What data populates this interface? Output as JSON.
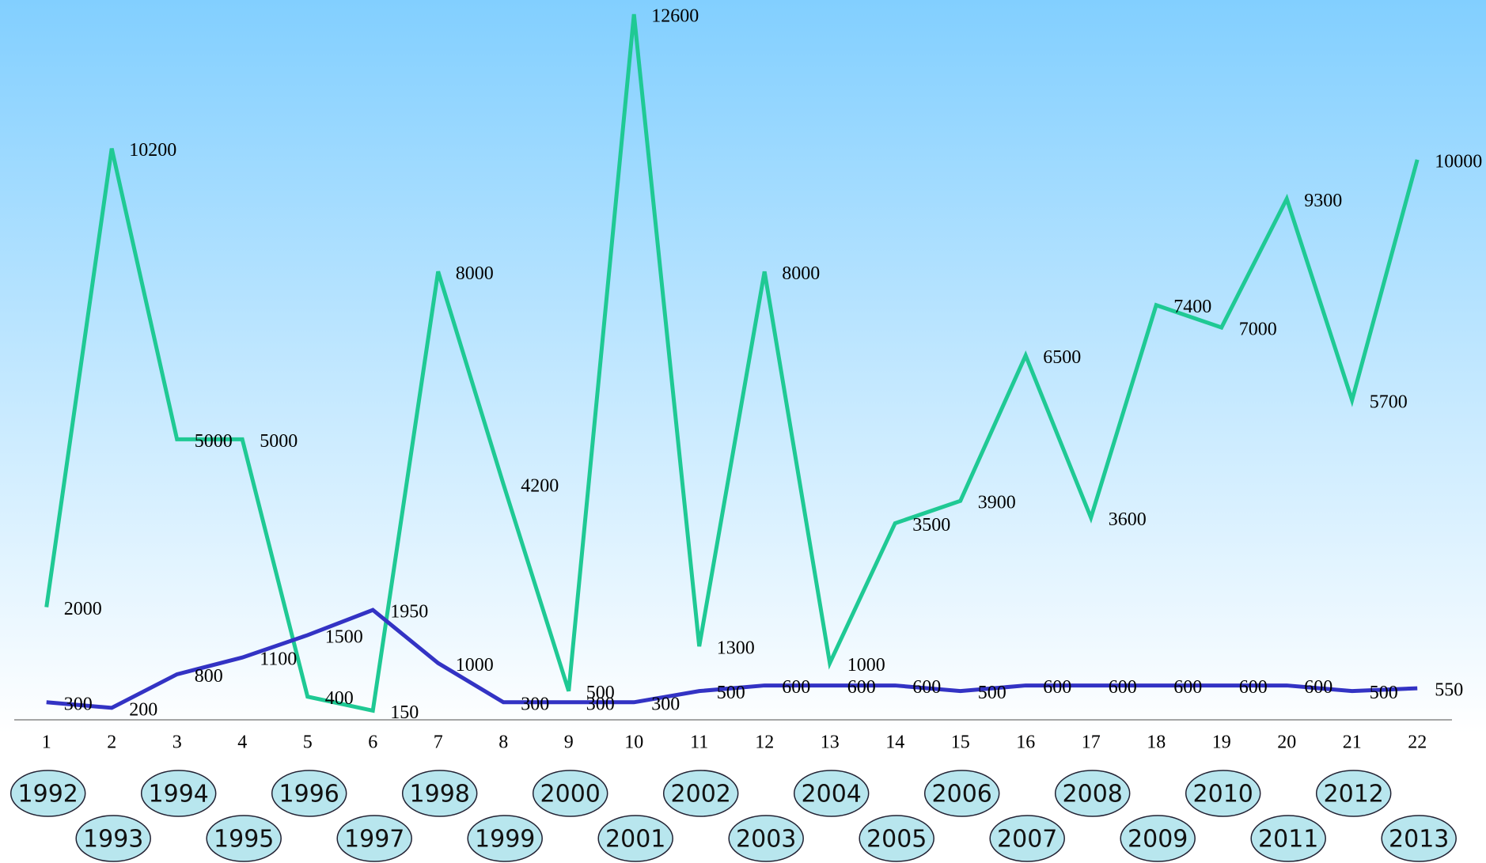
{
  "chart_data": {
    "type": "line",
    "categories": [
      "1",
      "2",
      "3",
      "4",
      "5",
      "6",
      "7",
      "8",
      "9",
      "10",
      "11",
      "12",
      "13",
      "14",
      "15",
      "16",
      "17",
      "18",
      "19",
      "20",
      "21",
      "22"
    ],
    "years": [
      "1992",
      "1993",
      "1994",
      "1995",
      "1996",
      "1997",
      "1998",
      "1999",
      "2000",
      "2001",
      "2002",
      "2003",
      "2004",
      "2005",
      "2006",
      "2007",
      "2008",
      "2009",
      "2010",
      "2011",
      "2012",
      "2013"
    ],
    "series": [
      {
        "color": "#1fc994",
        "values": [
          2000,
          10200,
          5000,
          5000,
          400,
          150,
          8000,
          4200,
          500,
          12600,
          1300,
          8000,
          1000,
          3500,
          3900,
          6500,
          3600,
          7400,
          7000,
          9300,
          5700,
          10000
        ]
      },
      {
        "color": "#3333c4",
        "values": [
          300,
          200,
          800,
          1100,
          1500,
          1950,
          1000,
          300,
          300,
          300,
          500,
          600,
          600,
          600,
          500,
          600,
          600,
          600,
          600,
          600,
          500,
          550
        ]
      }
    ],
    "ylim": [
      0,
      12600
    ]
  }
}
